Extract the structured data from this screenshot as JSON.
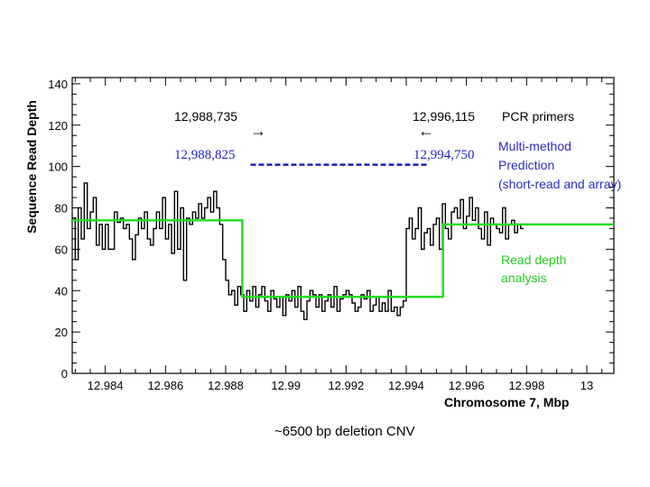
{
  "chart_data": {
    "type": "line",
    "title": "",
    "xlabel": "Chromosome 7, Mbp",
    "ylabel": "Sequence Read Depth",
    "xlim": [
      12.9829,
      13.0009
    ],
    "ylim": [
      0,
      143
    ],
    "xticks": [
      12.984,
      12.986,
      12.988,
      12.99,
      12.992,
      12.994,
      12.996,
      12.998,
      13.0
    ],
    "xtick_labels": [
      "12.984",
      "12.986",
      "12.988",
      "12.99",
      "12.992",
      "12.994",
      "12.996",
      "12.998",
      "13"
    ],
    "yticks": [
      0,
      20,
      40,
      60,
      80,
      100,
      120,
      140
    ],
    "ytick_labels": [
      "0",
      "20",
      "40",
      "60",
      "80",
      "100",
      "120",
      "140"
    ],
    "grid": false,
    "series": [
      {
        "style": "step",
        "color": "#000000",
        "x_start": 12.9829,
        "x_step": 0.0001,
        "values": [
          75,
          55,
          80,
          65,
          92,
          70,
          78,
          85,
          62,
          72,
          60,
          72,
          60,
          60,
          78,
          73,
          75,
          70,
          72,
          65,
          55,
          67,
          75,
          70,
          78,
          65,
          62,
          70,
          78,
          70,
          85,
          65,
          72,
          58,
          88,
          60,
          80,
          45,
          75,
          72,
          78,
          75,
          82,
          75,
          80,
          85,
          78,
          88,
          80,
          72,
          55,
          45,
          38,
          40,
          33,
          42,
          38,
          30,
          40,
          35,
          42,
          32,
          38,
          42,
          35,
          30,
          40,
          36,
          32,
          37,
          28,
          38,
          35,
          40,
          32,
          42,
          30,
          26,
          35,
          40,
          38,
          32,
          38,
          30,
          35,
          38,
          32,
          42,
          30,
          36,
          38,
          40,
          38,
          34,
          30,
          32,
          38,
          36,
          40,
          30,
          33,
          37,
          30,
          34,
          30,
          40,
          30,
          32,
          28,
          32,
          35,
          70,
          75,
          65,
          70,
          80,
          60,
          68,
          70,
          62,
          72,
          75,
          60,
          82,
          70,
          65,
          78,
          80,
          75,
          84,
          70,
          76,
          85,
          74,
          80,
          70,
          65,
          78,
          62,
          75,
          72,
          70,
          68,
          80,
          65,
          72,
          74,
          68,
          72,
          70
        ]
      },
      {
        "name": "Read depth analysis",
        "style": "step",
        "color": "#22dd22",
        "points": [
          [
            12.9829,
            74
          ],
          [
            12.98855,
            74
          ],
          [
            12.98855,
            37
          ],
          [
            12.99522,
            37
          ],
          [
            12.99522,
            72
          ],
          [
            13.0009,
            72
          ]
        ]
      }
    ],
    "deletion_prediction": {
      "start": 12.988825,
      "end": 12.99475,
      "y": 100,
      "color": "#1f1fbf"
    },
    "annotations": {
      "primer_left": "12,988,735",
      "primer_right": "12,996,115",
      "primer_label": "PCR primers",
      "pred_left": "12,988,825",
      "pred_right": "12,994,750",
      "multi_method": [
        "Multi-method",
        "Prediction",
        "(short-read and array)"
      ],
      "read_depth": [
        "Read depth",
        "analysis"
      ],
      "arrow_right": "→",
      "arrow_left": "←"
    },
    "caption": "~6500 bp deletion CNV"
  }
}
